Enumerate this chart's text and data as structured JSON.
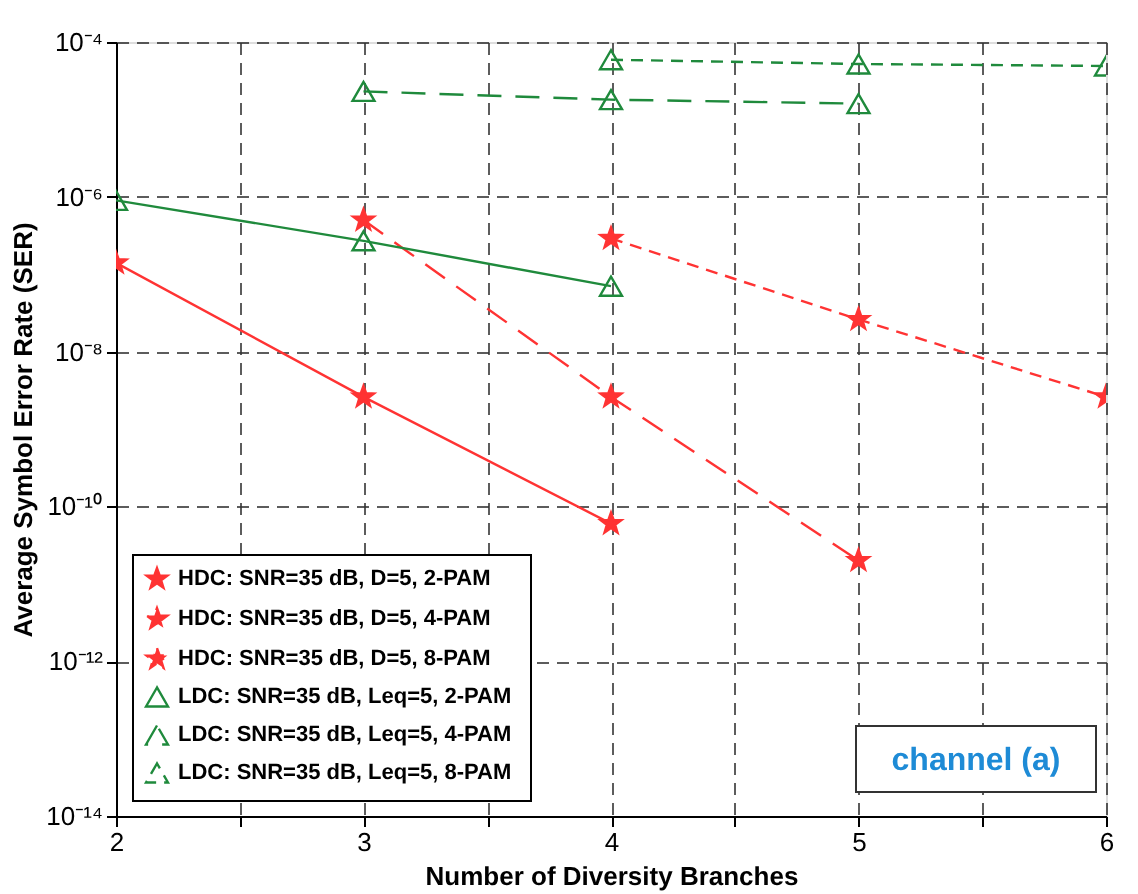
{
  "chart_data": {
    "type": "line",
    "xlabel": "Number  of  Diversity  Branches",
    "ylabel": "Average  Symbol  Error  Rate  (SER)",
    "log": "y",
    "grid": true,
    "legend": "bottom left",
    "xlim": [
      2,
      6
    ],
    "xticks": [
      2,
      {
        "value": 2.5,
        "label": null
      },
      3,
      {
        "value": 3.5,
        "label": null
      },
      4,
      {
        "value": 4.5,
        "label": null
      },
      5,
      {
        "value": 5.5,
        "label": null
      },
      6
    ],
    "ylim": [
      1e-14,
      0.0001
    ],
    "yticks": [
      {
        "value": 1e-14,
        "label": "10⁻¹⁴"
      },
      {
        "value": 1e-12,
        "label": "10⁻¹²"
      },
      {
        "value": 1e-10,
        "label": "10⁻¹⁰"
      },
      {
        "value": 1e-08,
        "label": "10⁻⁸"
      },
      {
        "value": 1e-06,
        "label": "10⁻⁶"
      },
      {
        "value": 0.0001,
        "label": "10⁻⁴"
      }
    ],
    "series": [
      {
        "name": "HDC: SNR=35 dB, D=5, 2-PAM",
        "color": "#ff3333",
        "marker": "star",
        "line_style": "solid",
        "x": [
          2,
          3,
          4
        ],
        "values": [
          1.4e-07,
          2.6e-09,
          6e-11
        ]
      },
      {
        "name": "HDC: SNR=35 dB, D=5, 4-PAM",
        "color": "#ff3333",
        "marker": "star",
        "line_style": "dashed",
        "x": [
          3,
          4,
          5
        ],
        "values": [
          5e-07,
          2.6e-09,
          2e-11
        ]
      },
      {
        "name": "HDC: SNR=35 dB, D=5, 8-PAM",
        "color": "#ff3333",
        "marker": "star",
        "line_style": "dashed",
        "x": [
          4,
          5,
          6
        ],
        "values": [
          2.9e-07,
          2.6e-08,
          2.6e-09
        ]
      },
      {
        "name": "LDC:  SNR=35 dB, Leq=5, 2-PAM",
        "color": "#1f8a3c",
        "marker": "triangle",
        "line_style": "solid",
        "x": [
          2,
          3,
          4
        ],
        "values": [
          9e-07,
          2.7e-07,
          7e-08
        ]
      },
      {
        "name": "LDC:  SNR=35 dB, Leq=5, 4-PAM",
        "color": "#1f8a3c",
        "marker": "triangle",
        "line_style": "dashed",
        "x": [
          3,
          4,
          5
        ],
        "values": [
          2.3e-05,
          1.8e-05,
          1.6e-05
        ]
      },
      {
        "name": "LDC:  SNR=35 dB, Leq=5, 8-PAM",
        "color": "#1f8a3c",
        "marker": "triangle",
        "line_style": "dashed",
        "x": [
          4,
          5,
          6
        ],
        "values": [
          5.9e-05,
          5.2e-05,
          4.9e-05
        ]
      }
    ],
    "annotations": [
      "channel (a)"
    ]
  }
}
